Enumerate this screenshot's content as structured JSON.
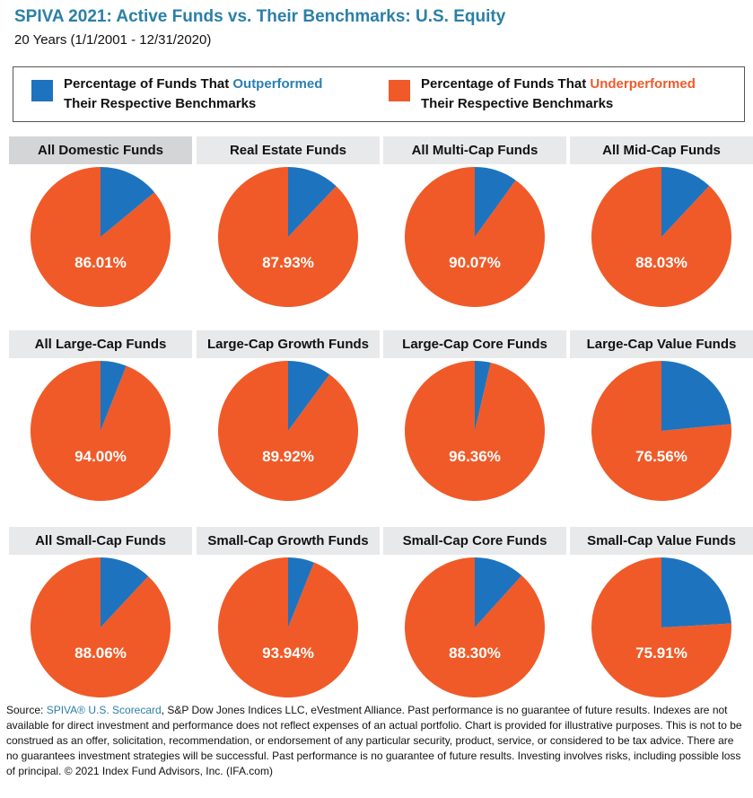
{
  "header": {
    "title": "SPIVA 2021: Active Funds vs. Their Benchmarks: U.S. Equity",
    "subtitle": "20 Years (1/1/2001 - 12/31/2020)"
  },
  "legend": {
    "outperformed": {
      "prefix": "Percentage of Funds That ",
      "highlight": "Outperformed",
      "suffix": "Their Respective Benchmarks",
      "color": "#1e73be"
    },
    "underperformed": {
      "prefix": "Percentage of Funds That ",
      "highlight": "Underperformed",
      "suffix": "Their Respective Benchmarks",
      "color": "#f05a28"
    }
  },
  "chart_data": [
    {
      "type": "pie",
      "title": "All Domestic Funds",
      "values": [
        86.01,
        13.99
      ],
      "label": "86.01%"
    },
    {
      "type": "pie",
      "title": "Real Estate Funds",
      "values": [
        87.93,
        12.07
      ],
      "label": "87.93%"
    },
    {
      "type": "pie",
      "title": "All Multi-Cap Funds",
      "values": [
        90.07,
        9.93
      ],
      "label": "90.07%"
    },
    {
      "type": "pie",
      "title": "All Mid-Cap Funds",
      "values": [
        88.03,
        11.97
      ],
      "label": "88.03%"
    },
    {
      "type": "pie",
      "title": "All Large-Cap Funds",
      "values": [
        94.0,
        6.0
      ],
      "label": "94.00%"
    },
    {
      "type": "pie",
      "title": "Large-Cap Growth Funds",
      "values": [
        89.92,
        10.08
      ],
      "label": "89.92%"
    },
    {
      "type": "pie",
      "title": "Large-Cap Core Funds",
      "values": [
        96.36,
        3.64
      ],
      "label": "96.36%"
    },
    {
      "type": "pie",
      "title": "Large-Cap Value Funds",
      "values": [
        76.56,
        23.44
      ],
      "label": "76.56%"
    },
    {
      "type": "pie",
      "title": "All Small-Cap Funds",
      "values": [
        88.06,
        11.94
      ],
      "label": "88.06%"
    },
    {
      "type": "pie",
      "title": "Small-Cap Growth Funds",
      "values": [
        93.94,
        6.06
      ],
      "label": "93.94%"
    },
    {
      "type": "pie",
      "title": "Small-Cap Core Funds",
      "values": [
        88.3,
        11.7
      ],
      "label": "88.30%"
    },
    {
      "type": "pie",
      "title": "Small-Cap Value Funds",
      "values": [
        75.91,
        24.09
      ],
      "label": "75.91%"
    }
  ],
  "colors": {
    "underperformed": "#f05a28",
    "outperformed": "#1e73be"
  },
  "source": {
    "prefix": "Source: ",
    "link": "SPIVA® U.S. Scorecard",
    "text": ", S&P Dow Jones Indices LLC, eVestment Alliance. Past performance is no guarantee of future results. Indexes are not available for direct investment and performance does not reflect expenses of an actual portfolio. Chart is provided for illustrative purposes. This is not to be construed as an offer, solicitation, recommendation, or endorsement of any particular security, product, service, or considered to be tax advice. There are no guarantees investment strategies will be successful. Past performance is no guarantee of future results. Investing involves risks, including possible loss of principal. © 2021 Index Fund Advisors, Inc. (IFA.com)"
  }
}
